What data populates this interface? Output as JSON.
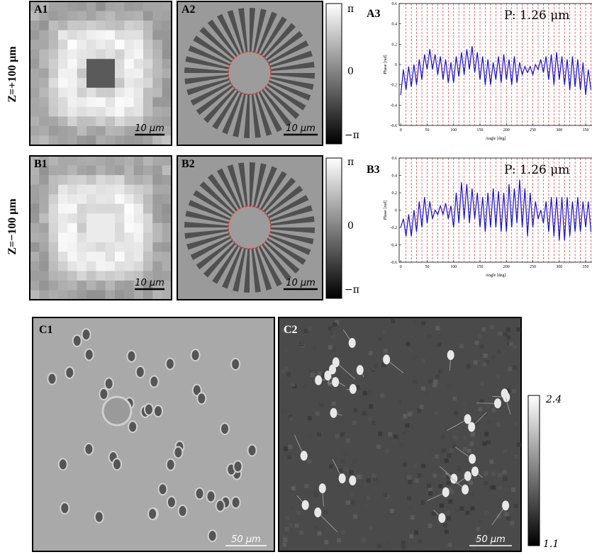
{
  "row_labels": [
    "Z=+100 μm",
    "Z=−100 μm"
  ],
  "panels": [
    {
      "label": "A1",
      "scale_bar": "10 μm"
    },
    {
      "label": "A2",
      "scale_bar": "10 μm"
    },
    {
      "label": "A3"
    },
    {
      "label": "B1",
      "scale_bar": "10 μm"
    },
    {
      "label": "B2",
      "scale_bar": "10 μm"
    },
    {
      "label": "B3"
    },
    {
      "label": "C1",
      "scale_bar": "50 μm"
    },
    {
      "label": "C2",
      "scale_bar": "50 μm"
    }
  ],
  "colorbars": [
    {
      "labels": [
        "π",
        "0",
        "−π"
      ]
    },
    {
      "labels": [
        "π",
        "0",
        "−π"
      ]
    },
    {
      "labels": [
        "2.4",
        "1.1"
      ]
    }
  ],
  "chart_data": [
    {
      "type": "line",
      "annotation": "P: 1.26 μm",
      "xlabel": "Angle [deg]",
      "ylabel": "Phase [rad]",
      "color": "#1010d0",
      "vline_color": "#e03030",
      "x": [
        0,
        5,
        10,
        15,
        20,
        25,
        30,
        35,
        40,
        45,
        50,
        55,
        60,
        65,
        70,
        75,
        80,
        85,
        90,
        95,
        100,
        105,
        110,
        115,
        120,
        125,
        130,
        135,
        140,
        145,
        150,
        155,
        160,
        165,
        170,
        175,
        180,
        185,
        190,
        195,
        200,
        205,
        210,
        215,
        220,
        225,
        230,
        235,
        240,
        245,
        250,
        255,
        260,
        265,
        270,
        275,
        280,
        285,
        290,
        295,
        300,
        305,
        310,
        315,
        320,
        325,
        330,
        335,
        340,
        345,
        350,
        355,
        360
      ],
      "values": [
        -0.3,
        -0.05,
        -0.25,
        -0.02,
        -0.22,
        0.0,
        -0.2,
        0.05,
        -0.15,
        0.1,
        -0.05,
        0.15,
        -0.05,
        0.1,
        -0.1,
        0.08,
        -0.15,
        0.05,
        -0.18,
        0.02,
        -0.18,
        0.08,
        -0.12,
        0.12,
        -0.1,
        0.15,
        -0.05,
        0.18,
        -0.08,
        0.12,
        -0.15,
        0.08,
        -0.2,
        0.05,
        -0.2,
        0.02,
        -0.15,
        0.08,
        -0.18,
        0.1,
        -0.15,
        0.05,
        -0.2,
        0.08,
        -0.18,
        0.02,
        -0.1,
        -0.02,
        -0.08,
        -0.02,
        -0.1,
        0.0,
        -0.05,
        0.05,
        -0.08,
        0.08,
        -0.15,
        0.1,
        -0.2,
        0.12,
        -0.15,
        0.08,
        -0.2,
        0.05,
        -0.25,
        0.08,
        -0.22,
        0.05,
        -0.25,
        0.02,
        -0.3,
        -0.05,
        -0.25
      ],
      "vlines": [
        10,
        20,
        30,
        40,
        50,
        60,
        70,
        80,
        90,
        100,
        110,
        120,
        130,
        140,
        150,
        160,
        170,
        180,
        190,
        200,
        210,
        220,
        230,
        240,
        250,
        260,
        270,
        280,
        290,
        300,
        310,
        320,
        330,
        340,
        350,
        360
      ],
      "xlim": [
        -3,
        362
      ],
      "ylim": [
        -0.6,
        0.6
      ],
      "xticks": [
        0,
        50,
        100,
        150,
        200,
        250,
        300,
        350
      ],
      "yticks": [
        -0.6,
        -0.4,
        -0.2,
        0,
        0.2,
        0.4,
        0.6
      ]
    },
    {
      "type": "line",
      "annotation": "P: 1.26 μm",
      "xlabel": "Angle [deg]",
      "ylabel": "Phase [rad]",
      "color": "#1010d0",
      "vline_color": "#e03030",
      "x": [
        0,
        5,
        10,
        15,
        20,
        25,
        30,
        35,
        40,
        45,
        50,
        55,
        60,
        65,
        70,
        75,
        80,
        85,
        90,
        95,
        100,
        105,
        110,
        115,
        120,
        125,
        130,
        135,
        140,
        145,
        150,
        155,
        160,
        165,
        170,
        175,
        180,
        185,
        190,
        195,
        200,
        205,
        210,
        215,
        220,
        225,
        230,
        235,
        240,
        245,
        250,
        255,
        260,
        265,
        270,
        275,
        280,
        285,
        290,
        295,
        300,
        305,
        310,
        315,
        320,
        325,
        330,
        335,
        340,
        345,
        350,
        355,
        360
      ],
      "values": [
        -0.2,
        -0.1,
        -0.3,
        -0.05,
        -0.3,
        0.0,
        -0.25,
        0.1,
        -0.2,
        0.15,
        -0.15,
        0.1,
        -0.1,
        0.0,
        -0.05,
        0.05,
        -0.05,
        0.08,
        -0.1,
        0.05,
        -0.2,
        0.2,
        -0.15,
        0.32,
        -0.1,
        0.3,
        -0.15,
        0.25,
        -0.1,
        0.2,
        -0.2,
        0.15,
        -0.25,
        0.2,
        -0.2,
        0.25,
        -0.2,
        0.22,
        -0.25,
        0.2,
        -0.25,
        0.3,
        -0.2,
        0.25,
        -0.15,
        0.35,
        -0.2,
        0.25,
        -0.3,
        0.2,
        -0.2,
        0.1,
        -0.1,
        0.0,
        -0.15,
        0.1,
        -0.25,
        0.15,
        -0.3,
        0.15,
        -0.35,
        0.15,
        -0.35,
        0.15,
        -0.3,
        0.1,
        -0.25,
        0.15,
        -0.25,
        0.1,
        -0.2,
        0.1,
        -0.25
      ],
      "vlines": [
        10,
        20,
        30,
        40,
        50,
        60,
        70,
        80,
        90,
        100,
        110,
        120,
        130,
        140,
        150,
        160,
        170,
        180,
        190,
        200,
        210,
        220,
        230,
        240,
        250,
        260,
        270,
        280,
        290,
        300,
        310,
        320,
        330,
        340,
        350,
        360
      ],
      "xlim": [
        -3,
        362
      ],
      "ylim": [
        -0.6,
        0.6
      ],
      "xticks": [
        0,
        50,
        100,
        150,
        200,
        250,
        300,
        350
      ],
      "yticks": [
        -0.6,
        -0.4,
        -0.2,
        0,
        0.2,
        0.4,
        0.6
      ]
    }
  ]
}
